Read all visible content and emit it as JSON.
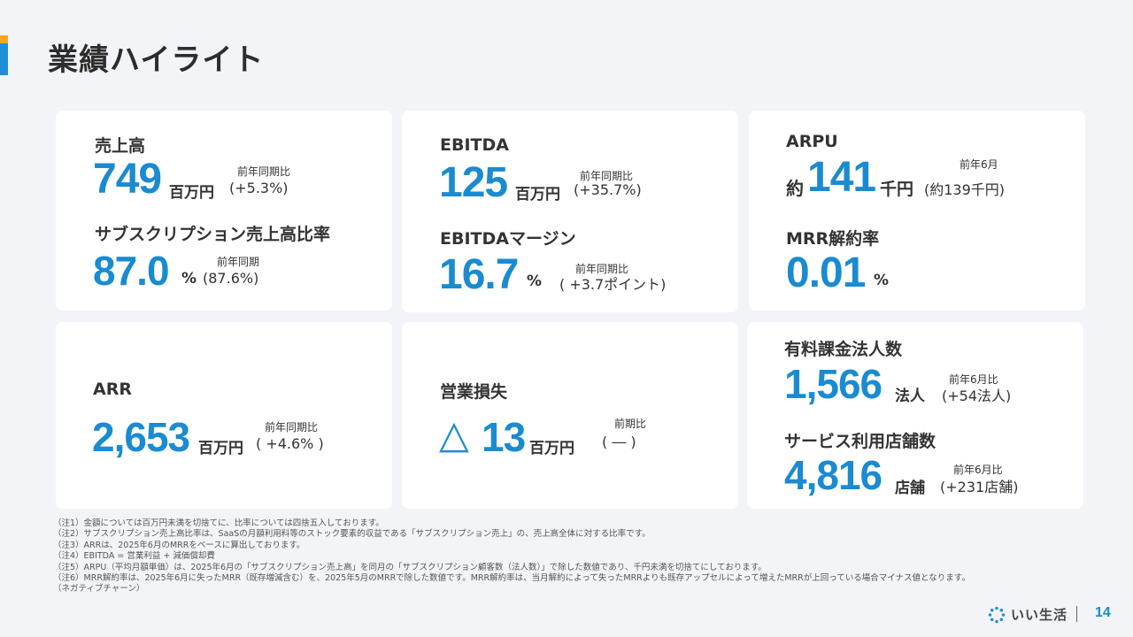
{
  "title": "業績ハイライト",
  "cards": {
    "revenue": {
      "label": "売上高",
      "value": "749",
      "unit": "百万円",
      "compare_label": "前年同期比",
      "compare_value": "(+5.3%)",
      "sub_label": "サブスクリプション売上高比率",
      "sub_value": "87.0",
      "sub_unit": "%",
      "sub_compare_label": "前年同期",
      "sub_compare_value": "(87.6%)"
    },
    "ebitda": {
      "label": "EBITDA",
      "value": "125",
      "unit": "百万円",
      "compare_label": "前年同期比",
      "compare_value": "(+35.7%)",
      "sub_label": "EBITDAマージン",
      "sub_value": "16.7",
      "sub_unit": "%",
      "sub_compare_label": "前年同期比",
      "sub_compare_value": "( +3.7ポイント)"
    },
    "arpu": {
      "label": "ARPU",
      "prefix": "約",
      "value": "141",
      "unit": "千円",
      "compare_label": "前年6月",
      "compare_value": "(約139千円)",
      "sub_label": "MRR解約率",
      "sub_value": "0.01",
      "sub_unit": "%"
    },
    "arr": {
      "label": "ARR",
      "value": "2,653",
      "unit": "百万円",
      "compare_label": "前年同期比",
      "compare_value": "( +4.6% )"
    },
    "operating_loss": {
      "label": "営業損失",
      "prefix": "△",
      "value": "13",
      "unit": "百万円",
      "compare_label": "前期比",
      "compare_value": "( ― )"
    },
    "customers": {
      "label": "有料課金法人数",
      "value": "1,566",
      "unit": "法人",
      "compare_label": "前年6月比",
      "compare_value": "(+54法人)",
      "sub_label": "サービス利用店舗数",
      "sub_value": "4,816",
      "sub_unit": "店舗",
      "sub_compare_label": "前年6月比",
      "sub_compare_value": "(+231店舗)"
    }
  },
  "notes": [
    "（注1）金額については百万円未満を切捨てに、比率については四捨五入しております。",
    "（注2）サブスクリプション売上高比率は、SaaSの月額利用料等のストック要素的収益である「サブスクリプション売上」の、売上高全体に対する比率です。",
    "（注3）ARRは、2025年6月のMRRをベースに算出しております。",
    "（注4）EBITDA = 営業利益 + 減価償却費",
    "（注5）ARPU（平均月額単価）は、2025年6月の「サブスクリプション売上高」を同月の「サブスクリプション顧客数（法人数）」で除した数値であり、千円未満を切捨てにしております。",
    "（注6）MRR解約率は、2025年6月に失ったMRR（既存増減含む）を、2025年5月のMRRで除した数値です。MRR解約率は、当月解約によって失ったMRRよりも既存アップセルによって増えたMRRが上回っている場合マイナス値となります。",
    "（ネガティブチャーン）"
  ],
  "footer": {
    "brand": "いい生活",
    "page_number": "14"
  },
  "colors": {
    "accent_blue": "#1a8bd1",
    "accent_orange": "#f5a623",
    "background": "#f2f4f7",
    "card": "#ffffff"
  },
  "icons": {
    "logo": "dotted-ring-logo-icon"
  }
}
